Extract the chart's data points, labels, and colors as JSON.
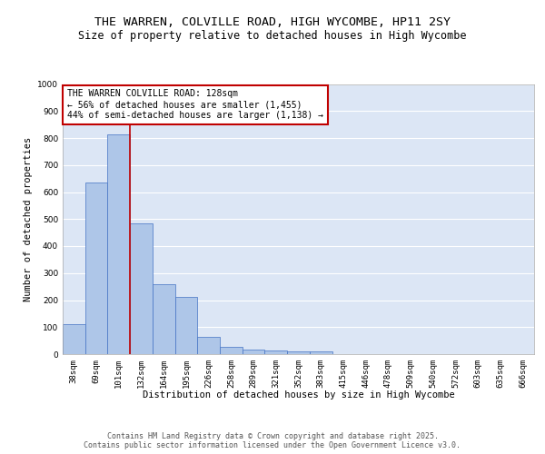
{
  "title_line1": "THE WARREN, COLVILLE ROAD, HIGH WYCOMBE, HP11 2SY",
  "title_line2": "Size of property relative to detached houses in High Wycombe",
  "xlabel": "Distribution of detached houses by size in High Wycombe",
  "ylabel": "Number of detached properties",
  "categories": [
    "38sqm",
    "69sqm",
    "101sqm",
    "132sqm",
    "164sqm",
    "195sqm",
    "226sqm",
    "258sqm",
    "289sqm",
    "321sqm",
    "352sqm",
    "383sqm",
    "415sqm",
    "446sqm",
    "478sqm",
    "509sqm",
    "540sqm",
    "572sqm",
    "603sqm",
    "635sqm",
    "666sqm"
  ],
  "values": [
    110,
    635,
    815,
    485,
    258,
    212,
    65,
    28,
    18,
    12,
    10,
    10,
    0,
    0,
    0,
    0,
    0,
    0,
    0,
    0,
    0
  ],
  "bar_color": "#aec6e8",
  "bar_edge_color": "#4472c4",
  "vline_x": 2.5,
  "vline_color": "#c00000",
  "annotation_text": "THE WARREN COLVILLE ROAD: 128sqm\n← 56% of detached houses are smaller (1,455)\n44% of semi-detached houses are larger (1,138) →",
  "annotation_box_color": "#ffffff",
  "annotation_box_edge": "#c00000",
  "ylim": [
    0,
    1000
  ],
  "yticks": [
    0,
    100,
    200,
    300,
    400,
    500,
    600,
    700,
    800,
    900,
    1000
  ],
  "background_color": "#dce6f5",
  "footer_text": "Contains HM Land Registry data © Crown copyright and database right 2025.\nContains public sector information licensed under the Open Government Licence v3.0.",
  "title_fontsize": 9.5,
  "subtitle_fontsize": 8.5,
  "axis_label_fontsize": 7.5,
  "tick_fontsize": 6.5,
  "annotation_fontsize": 7.0,
  "footer_fontsize": 6.0
}
